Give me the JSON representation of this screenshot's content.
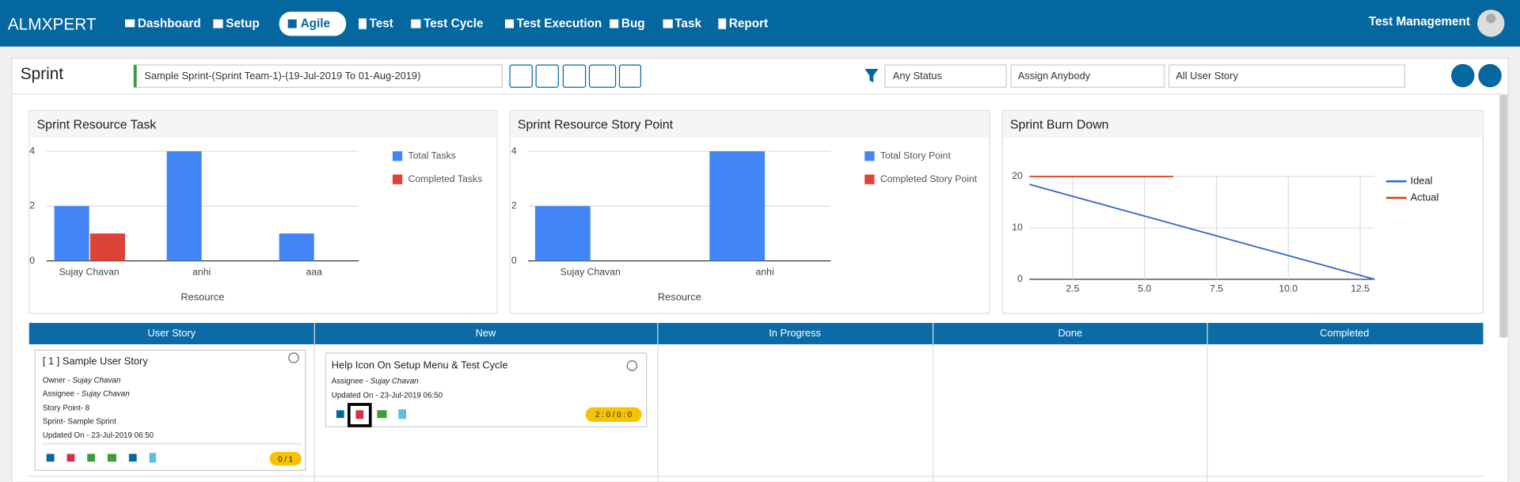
{
  "nav": {
    "brand": "ALMXPERT",
    "items": [
      "Dashboard",
      "Setup",
      "Agile",
      "Test",
      "Test Cycle",
      "Test Execution",
      "Bug",
      "Task",
      "Report"
    ],
    "user": "Test Management"
  },
  "toolbar": {
    "title": "Sprint",
    "sprint": "Sample Sprint-(Sprint Team-1)-(19-Jul-2019 To 01-Aug-2019)",
    "filters": [
      "Any Status",
      "Assign Anybody",
      "All User Story"
    ]
  },
  "chart_data": [
    {
      "type": "bar",
      "title": "Sprint Resource Task",
      "x_label": "Resource",
      "categories": [
        "Sujay Chavan",
        "anhi",
        "aaa"
      ],
      "series": [
        {
          "name": "Total Tasks",
          "color": "#4285f4",
          "values": [
            2,
            4,
            1
          ]
        },
        {
          "name": "Completed Tasks",
          "color": "#db4437",
          "values": [
            1,
            0,
            0
          ]
        }
      ],
      "ylim": [
        0,
        4
      ],
      "yticks": [
        0,
        2,
        4
      ],
      "grid": true
    },
    {
      "type": "bar",
      "title": "Sprint Resource Story Point",
      "x_label": "Resource",
      "categories": [
        "Sujay Chavan",
        "anhi"
      ],
      "series": [
        {
          "name": "Total Story Point",
          "color": "#4285f4",
          "values": [
            2,
            4
          ]
        },
        {
          "name": "Completed Story Point",
          "color": "#db4437",
          "values": [
            0,
            0
          ]
        }
      ],
      "ylim": [
        0,
        4
      ],
      "yticks": [
        0,
        2,
        4
      ],
      "grid": true
    },
    {
      "type": "line",
      "title": "Sprint Burn Down",
      "x": [
        1,
        2,
        3,
        4,
        5,
        6,
        7,
        8,
        9,
        10,
        11,
        12,
        13
      ],
      "series": [
        {
          "name": "Ideal",
          "color": "#3366cc",
          "values": [
            18.46,
            16.92,
            15.38,
            13.85,
            12.31,
            10.77,
            9.23,
            7.69,
            6.15,
            4.62,
            3.08,
            1.54,
            0
          ]
        },
        {
          "name": "Actual",
          "color": "#dc3912",
          "values": [
            20,
            20,
            20,
            20,
            20,
            20,
            null,
            null,
            null,
            null,
            null,
            null,
            null
          ]
        }
      ],
      "xlim": [
        1,
        13
      ],
      "xticks": [
        2.5,
        {
          "value": 5,
          "label": "5.0"
        },
        7.5,
        {
          "value": 10,
          "label": "10.0"
        },
        12.5
      ],
      "ylim": [
        0,
        20
      ],
      "yticks": [
        0,
        10,
        20
      ],
      "grid": true
    }
  ],
  "board": {
    "columns": [
      "User Story",
      "New",
      "In Progress",
      "Done",
      "Completed"
    ],
    "story": {
      "title": "[ 1 ] Sample User Story",
      "owner_label": "Owner - ",
      "owner": "Sujay Chavan",
      "assignee_label": "Assignee - ",
      "assignee": "Sujay Chavan",
      "story_point": "Story Point- 8",
      "sprint": "Sprint- Sample Sprint",
      "updated": "Updated On - 23-Jul-2019 06:50",
      "badge": "0 / 1"
    },
    "task": {
      "title": "Help Icon On Setup Menu & Test Cycle",
      "assignee_label": "Assignee - ",
      "assignee": "Sujay Chavan",
      "updated": "Updated On - 23-Jul-2019 06:50",
      "badge": "2 : 0 / 0 : 0"
    }
  }
}
